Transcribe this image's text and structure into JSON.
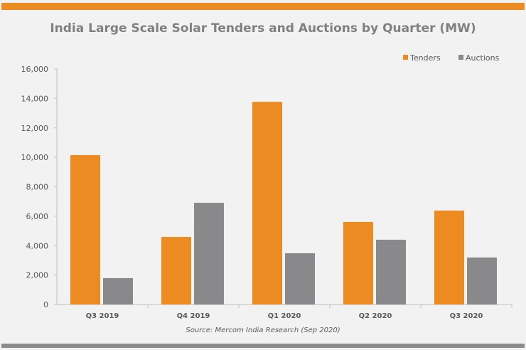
{
  "chart_data": {
    "type": "bar",
    "title": "India Large Scale Solar Tenders and Auctions by Quarter (MW)",
    "source": "Source: Mercom India Research (Sep 2020)",
    "categories": [
      "Q3 2019",
      "Q4 2019",
      "Q1 2020",
      "Q2 2020",
      "Q3 2020"
    ],
    "series": [
      {
        "name": "Tenders",
        "color": "#ec8b22",
        "values": [
          10150,
          4590,
          13770,
          5610,
          6380
        ]
      },
      {
        "name": "Auctions",
        "color": "#89898c",
        "values": [
          1790,
          6910,
          3480,
          4400,
          3190
        ]
      }
    ],
    "yticks": [
      "0",
      "2,000",
      "4,000",
      "6,000",
      "8,000",
      "10,000",
      "12,000",
      "14,000",
      "16,000"
    ],
    "ylim": [
      0,
      16000
    ],
    "grid": false,
    "legend": "top-right"
  }
}
